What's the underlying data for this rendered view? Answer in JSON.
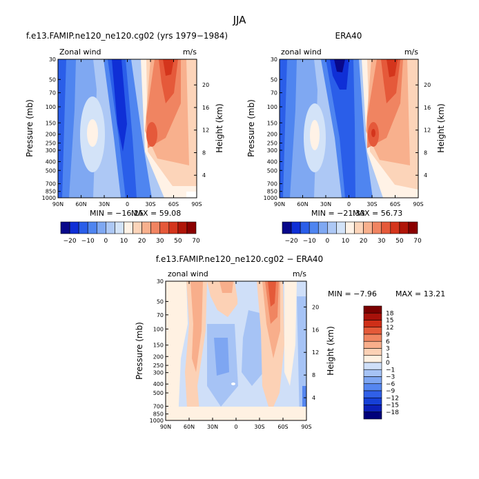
{
  "figure_title": "JJA",
  "colors": {
    "wind_scale": [
      "#08088a",
      "#0f2fd6",
      "#2a5ee9",
      "#4f85f0",
      "#7fa8f2",
      "#adc8f5",
      "#d3e3f8",
      "#fff2e6",
      "#fcd4b9",
      "#f8b08d",
      "#f08461",
      "#e5593a",
      "#d4351c",
      "#b01508",
      "#8a0000"
    ],
    "diff_scale": [
      "#00007a",
      "#0c20b8",
      "#1640d6",
      "#3060e8",
      "#5586f0",
      "#7ea6f2",
      "#a6c3f5",
      "#cfdff8",
      "#fff1e2",
      "#fcd1b5",
      "#f8ae8b",
      "#f08561",
      "#e45a39",
      "#cf2f18",
      "#a8110a",
      "#7a0000"
    ]
  },
  "chart_data": [
    {
      "type": "heatmap",
      "title": "f.e13.FAMIP.ne120_ne120.cg02 (yrs 1979−1984)",
      "variable_label": "Zonal wind",
      "units": "m/s",
      "ylabel": "Pressure (mb)",
      "ylabel_right": "Height (km)",
      "x_ticks": [
        "90N",
        "60N",
        "30N",
        "0",
        "30S",
        "60S",
        "90S"
      ],
      "y_ticks": [
        "30",
        "50",
        "70",
        "100",
        "150",
        "200",
        "250",
        "300",
        "400",
        "500",
        "700",
        "850",
        "1000"
      ],
      "height_ticks": [
        "4",
        "8",
        "12",
        "16",
        "20"
      ],
      "stats": {
        "min_label": "MIN = −16.25",
        "max_label": "MAX = 59.08"
      },
      "colorbar_labels": [
        "−20",
        "−10",
        "0",
        "10",
        "20",
        "30",
        "50",
        "70"
      ],
      "jets": [
        {
          "lat": -45,
          "p": 30,
          "speed": 59.08
        },
        {
          "lat": -35,
          "p": 200,
          "speed": 40
        },
        {
          "lat": 45,
          "p": 200,
          "speed": 16
        },
        {
          "lat": 10,
          "p": 30,
          "speed": -16.25
        }
      ]
    },
    {
      "type": "heatmap",
      "title": "ERA40",
      "variable_label": "zonal wind",
      "units": "m/s",
      "ylabel": "Pressure (mb)",
      "ylabel_right": "Height (km)",
      "x_ticks": [
        "90N",
        "60N",
        "30N",
        "0",
        "30S",
        "60S",
        "90S"
      ],
      "y_ticks": [
        "30",
        "50",
        "70",
        "100",
        "150",
        "200",
        "250",
        "300",
        "400",
        "500",
        "700",
        "850",
        "1000"
      ],
      "height_ticks": [
        "4",
        "8",
        "12",
        "16",
        "20"
      ],
      "stats": {
        "min_label": "MIN = −21.33",
        "max_label": "MAX = 56.73"
      },
      "colorbar_labels": [
        "−20",
        "−10",
        "0",
        "10",
        "20",
        "30",
        "50",
        "70"
      ],
      "jets": [
        {
          "lat": -45,
          "p": 30,
          "speed": 56.73
        },
        {
          "lat": -35,
          "p": 200,
          "speed": 42
        },
        {
          "lat": 45,
          "p": 200,
          "speed": 16
        },
        {
          "lat": 15,
          "p": 30,
          "speed": -21.33
        }
      ]
    },
    {
      "type": "heatmap",
      "title": "f.e13.FAMIP.ne120_ne120.cg02 − ERA40",
      "variable_label": "zonal wind",
      "units": "m/s",
      "ylabel": "Pressure (mb)",
      "ylabel_right": "Height (km)",
      "x_ticks": [
        "90N",
        "60N",
        "30N",
        "0",
        "30S",
        "60S",
        "90S"
      ],
      "y_ticks": [
        "30",
        "50",
        "70",
        "100",
        "150",
        "200",
        "250",
        "300",
        "400",
        "500",
        "700",
        "850",
        "1000"
      ],
      "height_ticks": [
        "4",
        "8",
        "12",
        "16",
        "20"
      ],
      "stats": {
        "min_label": "MIN =  −7.96",
        "max_label": "MAX =  13.21"
      },
      "colorbar_labels": [
        "18",
        "15",
        "12",
        "9",
        "6",
        "3",
        "1",
        "0",
        "−1",
        "−3",
        "−6",
        "−9",
        "−12",
        "−15",
        "−18"
      ]
    }
  ]
}
